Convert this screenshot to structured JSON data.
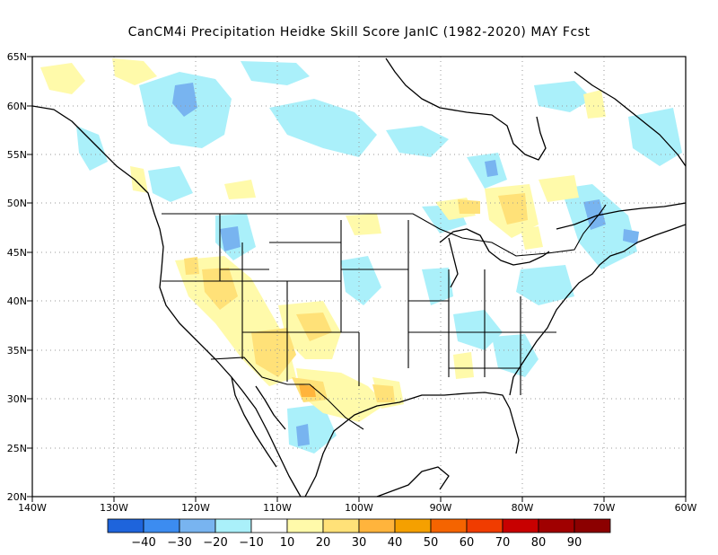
{
  "title": "CanCM4i  Precipitation Heidke Skill Score JanIC (1982-2020) MAY Fcst",
  "lat_labels": [
    "65N",
    "60N",
    "55N",
    "50N",
    "45N",
    "40N",
    "35N",
    "30N",
    "25N",
    "20N"
  ],
  "lon_labels": [
    "140W",
    "130W",
    "120W",
    "110W",
    "100W",
    "90W",
    "80W",
    "70W",
    "60W"
  ],
  "colorbar": {
    "labels": [
      "-40",
      "-30",
      "-20",
      "-10",
      "10",
      "20",
      "30",
      "40",
      "50",
      "60",
      "70",
      "80",
      "90"
    ],
    "colors": [
      "#1e64dc",
      "#3c8cf0",
      "#78b4f0",
      "#aaf0fa",
      "#ffffff",
      "#fffaaa",
      "#ffe178",
      "#ffb43c",
      "#f5a000",
      "#f56400",
      "#f03c00",
      "#c80000",
      "#a00000",
      "#8c0000"
    ]
  }
}
